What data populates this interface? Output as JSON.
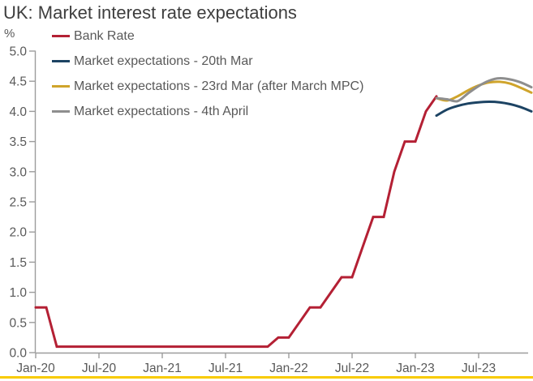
{
  "title": "UK: Market interest rate expectations",
  "colors": {
    "title_text": "#3e3e3e",
    "axis_line": "#9c9c9c",
    "axis_text": "#595959",
    "legend_text": "#595959",
    "bank_rate_red": "#b42034",
    "expectations_navy": "#1c4363",
    "expectations_gold": "#cfa42b",
    "expectations_gray": "#8e8e8e",
    "bottom_accent_yellow": "#f8cb00",
    "background": "#ffffff"
  },
  "chart_data": {
    "type": "line",
    "title": "UK: Market interest rate expectations",
    "ylabel": "%",
    "ylim": [
      0.0,
      5.0
    ],
    "ytick_step": 0.5,
    "grid": false,
    "legend_position": "top-left",
    "x_unit": "month",
    "x_range": "Jan-2020 to Dec-2023",
    "x_tick_labels": [
      "Jan-20",
      "Jul-20",
      "Jan-21",
      "Jul-21",
      "Jan-22",
      "Jul-22",
      "Jan-23",
      "Jul-23"
    ],
    "x_tick_month_indices": [
      0,
      6,
      12,
      18,
      24,
      30,
      36,
      42
    ],
    "series": [
      {
        "name": "Bank Rate",
        "color": "#b42034",
        "smooth": false,
        "start_index": 0,
        "start_month": "Jan-20",
        "values": [
          0.75,
          0.75,
          0.1,
          0.1,
          0.1,
          0.1,
          0.1,
          0.1,
          0.1,
          0.1,
          0.1,
          0.1,
          0.1,
          0.1,
          0.1,
          0.1,
          0.1,
          0.1,
          0.1,
          0.1,
          0.1,
          0.1,
          0.1,
          0.25,
          0.25,
          0.5,
          0.75,
          0.75,
          1.0,
          1.25,
          1.25,
          1.75,
          2.25,
          2.25,
          3.0,
          3.5,
          3.5,
          4.0,
          4.25
        ]
      },
      {
        "name": "Market expectations - 20th Mar",
        "color": "#1c4363",
        "smooth": true,
        "start_index": 38,
        "start_month": "Mar-23",
        "values": [
          3.93,
          4.03,
          4.09,
          4.13,
          4.15,
          4.16,
          4.15,
          4.12,
          4.07,
          4.0
        ]
      },
      {
        "name": "Market expectations - 23rd Mar (after March MPC)",
        "color": "#cfa42b",
        "smooth": true,
        "start_index": 38,
        "start_month": "Mar-23",
        "values": [
          4.22,
          4.18,
          4.25,
          4.35,
          4.43,
          4.48,
          4.49,
          4.46,
          4.39,
          4.31
        ]
      },
      {
        "name": "Market expectations - 4th April",
        "color": "#8e8e8e",
        "smooth": true,
        "start_index": 38,
        "start_month": "Mar-23",
        "values": [
          4.22,
          4.2,
          4.17,
          4.3,
          4.42,
          4.51,
          4.55,
          4.53,
          4.48,
          4.4
        ]
      }
    ]
  }
}
